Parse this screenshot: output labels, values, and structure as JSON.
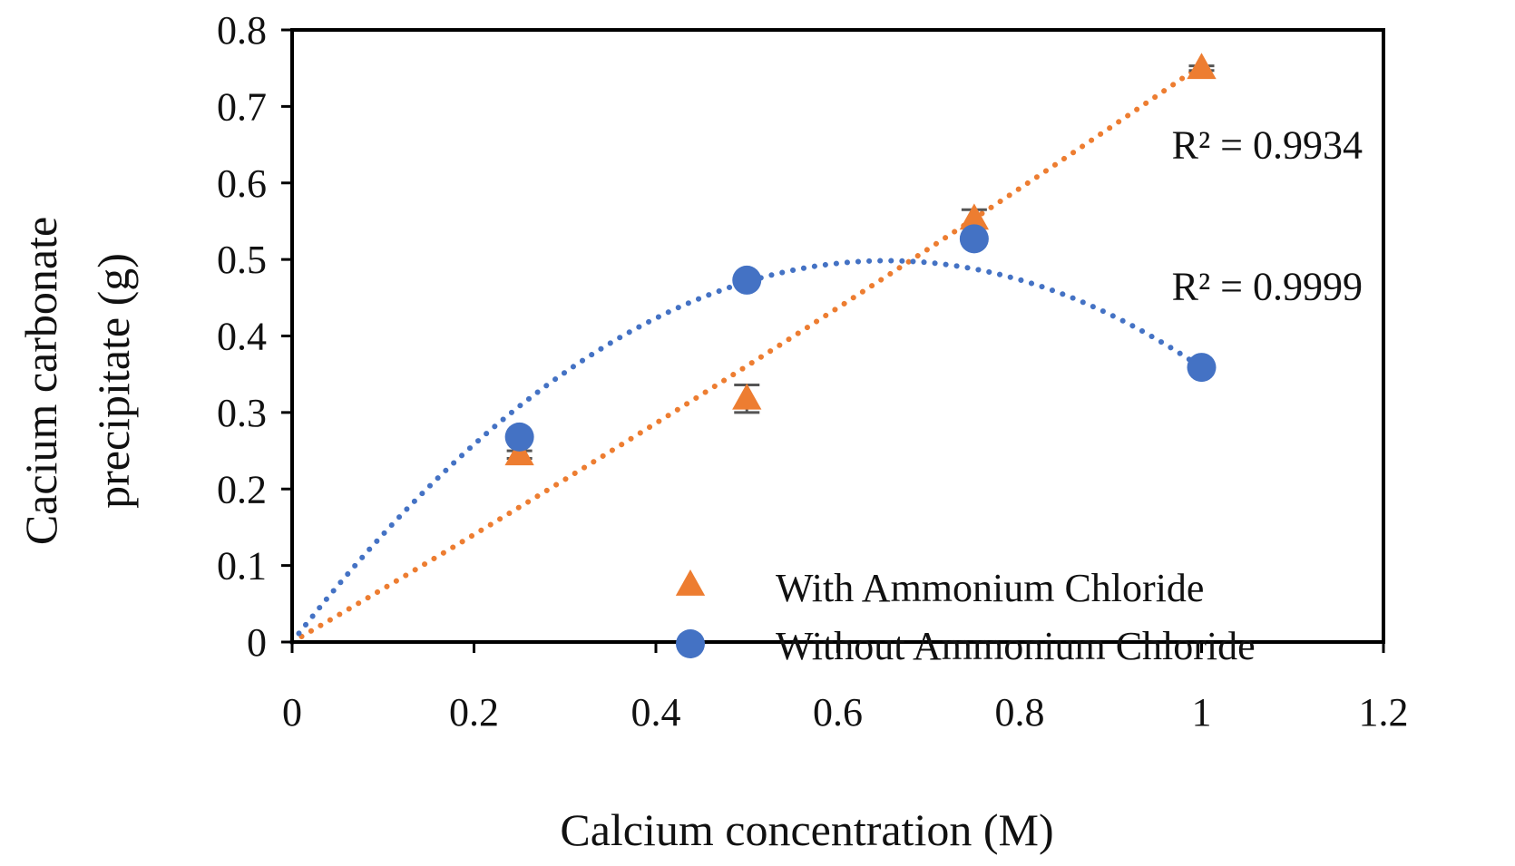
{
  "chart_data": {
    "type": "scatter",
    "title": "",
    "xlabel": "Calcium concentration (M)",
    "ylabel_lines": [
      "Cacium carbonate",
      "precipitate (g)"
    ],
    "xlim": [
      0,
      1.2
    ],
    "ylim": [
      0,
      0.8
    ],
    "xticks": [
      0,
      0.2,
      0.4,
      0.6,
      0.8,
      1,
      1.2
    ],
    "xtick_labels": [
      "0",
      "0.2",
      "0.4",
      "0.6",
      "0.8",
      "1",
      "1.2"
    ],
    "yticks": [
      0,
      0.1,
      0.2,
      0.3,
      0.4,
      0.5,
      0.6,
      0.7,
      0.8
    ],
    "ytick_labels": [
      "0",
      "0.1",
      "0.2",
      "0.3",
      "0.4",
      "0.5",
      "0.6",
      "0.7",
      "0.8"
    ],
    "grid": false,
    "legend_position": "bottom-right",
    "series": [
      {
        "name": "With Ammonium Chloride",
        "marker": "triangle",
        "color": "#ED7D31",
        "x": [
          0.25,
          0.5,
          0.75,
          1.0
        ],
        "y": [
          0.245,
          0.318,
          0.553,
          0.75
        ],
        "error": [
          0.005,
          0.018,
          0.012,
          0.003
        ],
        "trendline": {
          "kind": "polynomial",
          "coefficients": [
            0,
            0.689,
            0.065
          ],
          "x_range": [
            0,
            1.0
          ],
          "r2_label": "R² = 0.9934"
        }
      },
      {
        "name": "Without Ammonium Chloride",
        "marker": "circle",
        "color": "#4472C4",
        "x": [
          0.25,
          0.5,
          0.75,
          1.0
        ],
        "y": [
          0.268,
          0.473,
          0.527,
          0.359
        ],
        "error": [
          0,
          0,
          0,
          0
        ],
        "trendline": {
          "kind": "polynomial",
          "coefficients": [
            0,
            1.5244,
            -1.1657
          ],
          "x_range": [
            0,
            1.0
          ],
          "r2_label": "R² = 0.9999"
        }
      }
    ],
    "annotations": [
      {
        "text": "R² = 0.9934",
        "x": 1.0,
        "y": 0.65
      },
      {
        "text": "R² = 0.9999",
        "x": 1.0,
        "y": 0.465
      }
    ]
  }
}
